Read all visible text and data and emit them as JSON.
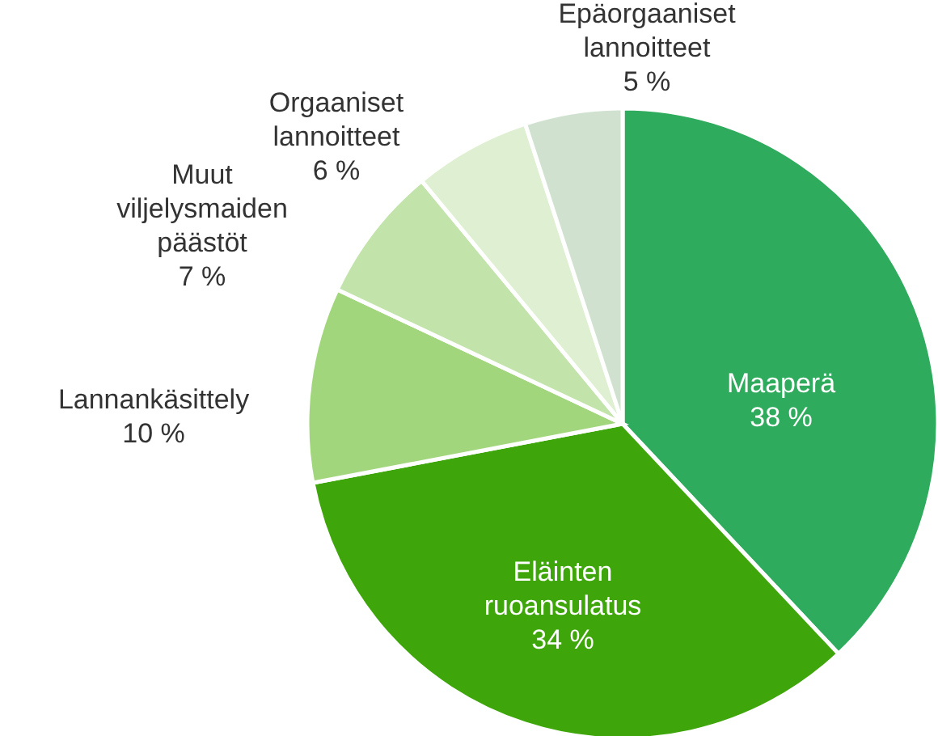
{
  "chart_data": {
    "type": "pie",
    "categories": [
      "Maaperä",
      "Eläinten ruoansulatus",
      "Lannankäsittely",
      "Muut viljelysmaiden päästöt",
      "Orgaaniset lannoitteet",
      "Epäorgaaniset lannoitteet"
    ],
    "values": [
      38,
      34,
      10,
      7,
      6,
      5
    ],
    "colors": [
      "#2eab5c",
      "#3ea60a",
      "#a2d67c",
      "#c2e3aa",
      "#dff0d2",
      "#d0e2cf"
    ],
    "value_labels": [
      "38 %",
      "34 %",
      "10 %",
      "7 %",
      "6 %",
      "5 %"
    ]
  }
}
